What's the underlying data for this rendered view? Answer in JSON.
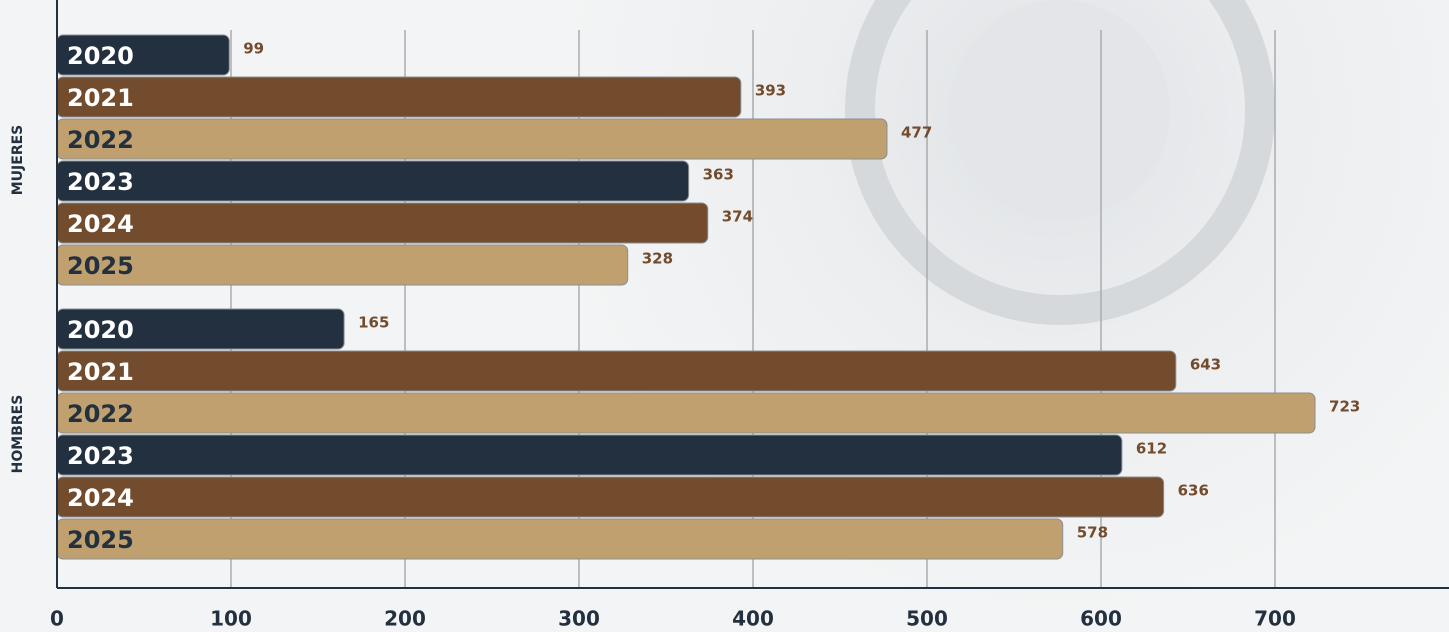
{
  "chart_data": {
    "type": "bar",
    "orientation": "horizontal",
    "categories": [
      "MUJERES",
      "HOMBRES"
    ],
    "series": [
      {
        "name": "2020",
        "color": "#22303f",
        "label_color": "#ffffff",
        "values": [
          99,
          165
        ]
      },
      {
        "name": "2021",
        "color": "#734b2d",
        "label_color": "#ffffff",
        "values": [
          393,
          643
        ]
      },
      {
        "name": "2022",
        "color": "#bfa06e",
        "label_color": "#22303f",
        "values": [
          477,
          723
        ]
      },
      {
        "name": "2023",
        "color": "#22303f",
        "label_color": "#ffffff",
        "values": [
          363,
          612
        ]
      },
      {
        "name": "2024",
        "color": "#734b2d",
        "label_color": "#ffffff",
        "values": [
          374,
          636
        ]
      },
      {
        "name": "2025",
        "color": "#bfa06e",
        "label_color": "#22303f",
        "values": [
          328,
          578
        ]
      }
    ],
    "xlim": [
      0,
      800
    ],
    "xticks": [
      0,
      100,
      200,
      300,
      400,
      500,
      600,
      700
    ],
    "grid": true
  }
}
